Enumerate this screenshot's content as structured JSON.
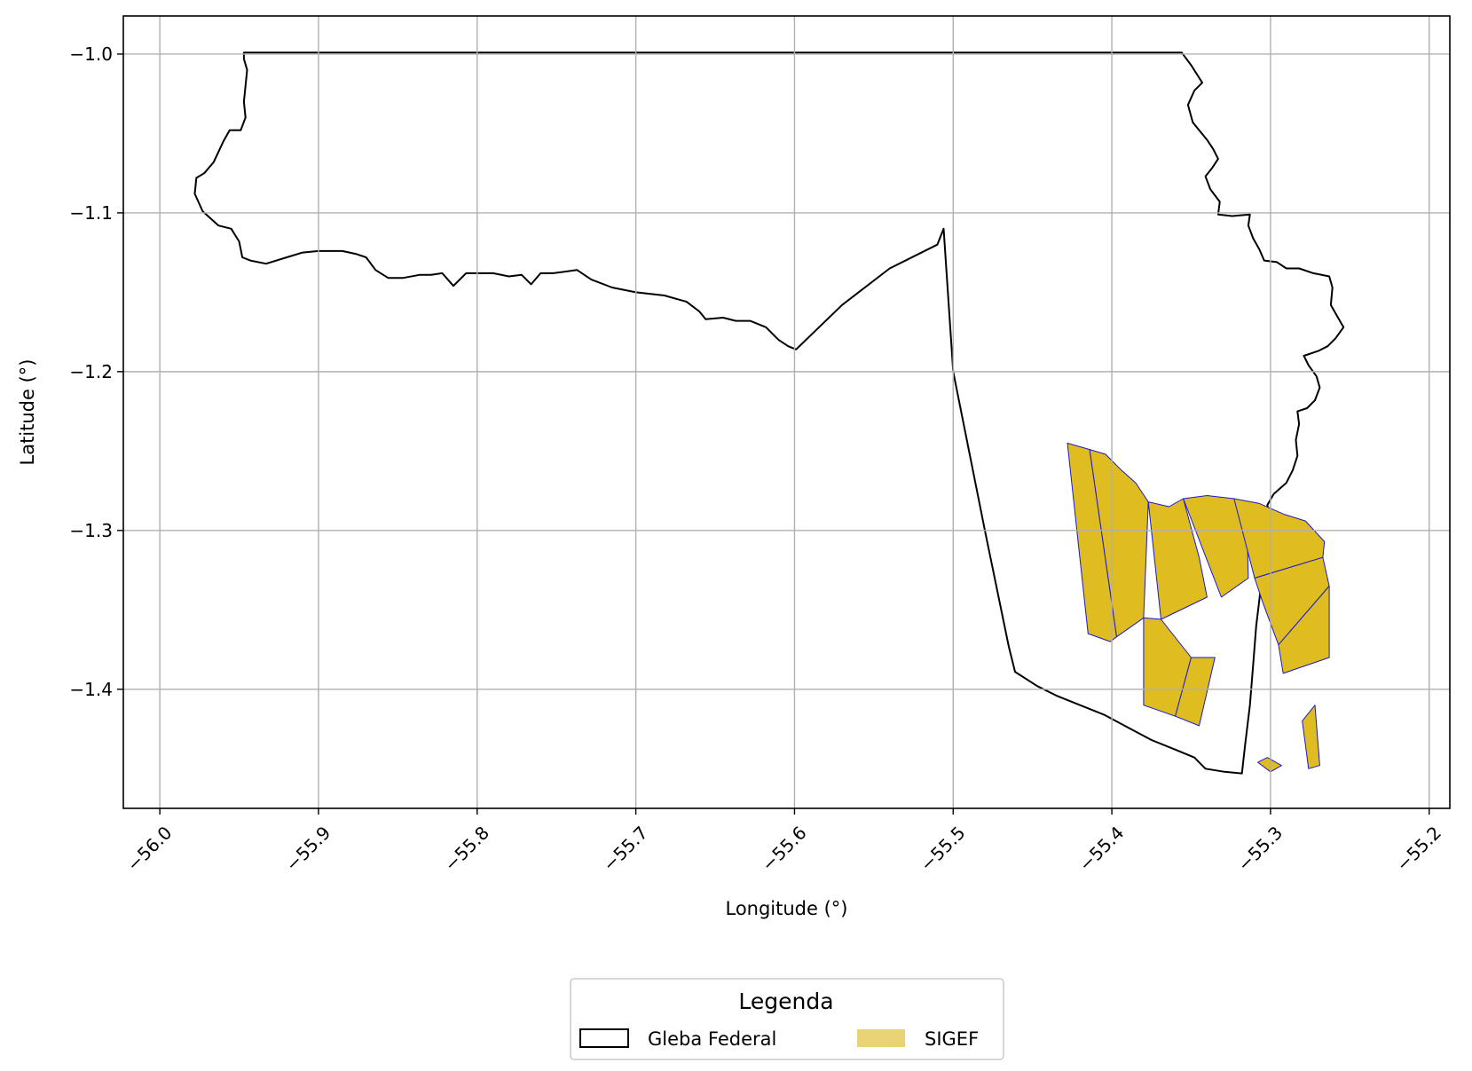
{
  "chart_data": {
    "type": "map",
    "xlabel": "Longitude (°)",
    "ylabel": "Latitude (°)",
    "xlim": [
      -56.023,
      -55.187
    ],
    "ylim": [
      -1.475,
      -0.976
    ],
    "xticks": [
      -56.0,
      -55.9,
      -55.8,
      -55.7,
      -55.6,
      -55.5,
      -55.4,
      -55.3,
      -55.2
    ],
    "xtick_labels": [
      "−56.0",
      "−55.9",
      "−55.8",
      "−55.7",
      "−55.6",
      "−55.5",
      "−55.4",
      "−55.3",
      "−55.2"
    ],
    "yticks": [
      -1.0,
      -1.1,
      -1.2,
      -1.3,
      -1.4
    ],
    "ytick_labels": [
      "−1.0",
      "−1.1",
      "−1.2",
      "−1.3",
      "−1.4"
    ],
    "grid": true,
    "legend": {
      "title": "Legenda",
      "position": "bottom-center",
      "entries": [
        {
          "label": "Gleba Federal",
          "style": "outline",
          "edge": "#000000",
          "fill": "#ffffff"
        },
        {
          "label": "SIGEF",
          "style": "fill",
          "fill": "#e8d474"
        }
      ]
    },
    "layers": [
      {
        "name": "Gleba Federal",
        "fill": "#ffffff",
        "edge": "#000000",
        "coords": [
          [
            -55.947,
            -0.999
          ],
          [
            -55.92,
            -0.999
          ],
          [
            -55.81,
            -0.999
          ],
          [
            -55.7,
            -0.999
          ],
          [
            -55.6,
            -0.999
          ],
          [
            -55.5,
            -0.999
          ],
          [
            -55.45,
            -0.999
          ],
          [
            -55.356,
            -0.999
          ],
          [
            -55.35,
            -1.007
          ],
          [
            -55.343,
            -1.018
          ],
          [
            -55.348,
            -1.023
          ],
          [
            -55.352,
            -1.032
          ],
          [
            -55.349,
            -1.043
          ],
          [
            -55.345,
            -1.048
          ],
          [
            -55.34,
            -1.054
          ],
          [
            -55.336,
            -1.06
          ],
          [
            -55.333,
            -1.066
          ],
          [
            -55.337,
            -1.072
          ],
          [
            -55.341,
            -1.077
          ],
          [
            -55.338,
            -1.085
          ],
          [
            -55.332,
            -1.093
          ],
          [
            -55.333,
            -1.101
          ],
          [
            -55.324,
            -1.102
          ],
          [
            -55.313,
            -1.101
          ],
          [
            -55.314,
            -1.108
          ],
          [
            -55.311,
            -1.116
          ],
          [
            -55.307,
            -1.123
          ],
          [
            -55.304,
            -1.13
          ],
          [
            -55.296,
            -1.131
          ],
          [
            -55.29,
            -1.135
          ],
          [
            -55.282,
            -1.135
          ],
          [
            -55.273,
            -1.138
          ],
          [
            -55.263,
            -1.14
          ],
          [
            -55.261,
            -1.147
          ],
          [
            -55.262,
            -1.158
          ],
          [
            -55.258,
            -1.165
          ],
          [
            -55.254,
            -1.172
          ],
          [
            -55.259,
            -1.179
          ],
          [
            -55.264,
            -1.184
          ],
          [
            -55.27,
            -1.187
          ],
          [
            -55.279,
            -1.19
          ],
          [
            -55.276,
            -1.196
          ],
          [
            -55.271,
            -1.203
          ],
          [
            -55.269,
            -1.21
          ],
          [
            -55.272,
            -1.218
          ],
          [
            -55.277,
            -1.223
          ],
          [
            -55.283,
            -1.225
          ],
          [
            -55.282,
            -1.233
          ],
          [
            -55.284,
            -1.243
          ],
          [
            -55.283,
            -1.253
          ],
          [
            -55.286,
            -1.262
          ],
          [
            -55.29,
            -1.27
          ],
          [
            -55.298,
            -1.277
          ],
          [
            -55.302,
            -1.284
          ],
          [
            -55.3,
            -1.292
          ],
          [
            -55.302,
            -1.298
          ],
          [
            -55.305,
            -1.305
          ],
          [
            -55.303,
            -1.313
          ],
          [
            -55.305,
            -1.319
          ],
          [
            -55.306,
            -1.335
          ],
          [
            -55.309,
            -1.36
          ],
          [
            -55.311,
            -1.385
          ],
          [
            -55.313,
            -1.41
          ],
          [
            -55.316,
            -1.435
          ],
          [
            -55.318,
            -1.453
          ],
          [
            -55.329,
            -1.452
          ],
          [
            -55.341,
            -1.45
          ],
          [
            -55.348,
            -1.443
          ],
          [
            -55.36,
            -1.438
          ],
          [
            -55.375,
            -1.432
          ],
          [
            -55.39,
            -1.424
          ],
          [
            -55.405,
            -1.416
          ],
          [
            -55.42,
            -1.41
          ],
          [
            -55.435,
            -1.404
          ],
          [
            -55.447,
            -1.398
          ],
          [
            -55.461,
            -1.389
          ],
          [
            -55.465,
            -1.373
          ],
          [
            -55.48,
            -1.3
          ],
          [
            -55.5,
            -1.2
          ],
          [
            -55.506,
            -1.11
          ],
          [
            -55.51,
            -1.12
          ],
          [
            -55.54,
            -1.135
          ],
          [
            -55.57,
            -1.158
          ],
          [
            -55.599,
            -1.186
          ],
          [
            -55.604,
            -1.184
          ],
          [
            -55.61,
            -1.18
          ],
          [
            -55.618,
            -1.172
          ],
          [
            -55.628,
            -1.168
          ],
          [
            -55.637,
            -1.168
          ],
          [
            -55.645,
            -1.166
          ],
          [
            -55.656,
            -1.167
          ],
          [
            -55.66,
            -1.162
          ],
          [
            -55.668,
            -1.156
          ],
          [
            -55.682,
            -1.152
          ],
          [
            -55.7,
            -1.15
          ],
          [
            -55.715,
            -1.147
          ],
          [
            -55.728,
            -1.142
          ],
          [
            -55.737,
            -1.136
          ],
          [
            -55.752,
            -1.138
          ],
          [
            -55.76,
            -1.138
          ],
          [
            -55.766,
            -1.145
          ],
          [
            -55.772,
            -1.139
          ],
          [
            -55.78,
            -1.14
          ],
          [
            -55.79,
            -1.138
          ],
          [
            -55.798,
            -1.138
          ],
          [
            -55.807,
            -1.138
          ],
          [
            -55.815,
            -1.146
          ],
          [
            -55.822,
            -1.138
          ],
          [
            -55.829,
            -1.139
          ],
          [
            -55.836,
            -1.139
          ],
          [
            -55.847,
            -1.141
          ],
          [
            -55.856,
            -1.141
          ],
          [
            -55.864,
            -1.136
          ],
          [
            -55.87,
            -1.128
          ],
          [
            -55.876,
            -1.126
          ],
          [
            -55.885,
            -1.124
          ],
          [
            -55.9,
            -1.124
          ],
          [
            -55.91,
            -1.125
          ],
          [
            -55.92,
            -1.128
          ],
          [
            -55.933,
            -1.132
          ],
          [
            -55.943,
            -1.13
          ],
          [
            -55.948,
            -1.128
          ],
          [
            -55.95,
            -1.118
          ],
          [
            -55.955,
            -1.11
          ],
          [
            -55.963,
            -1.108
          ],
          [
            -55.973,
            -1.099
          ],
          [
            -55.978,
            -1.088
          ],
          [
            -55.977,
            -1.078
          ],
          [
            -55.972,
            -1.075
          ],
          [
            -55.966,
            -1.068
          ],
          [
            -55.96,
            -1.055
          ],
          [
            -55.956,
            -1.048
          ],
          [
            -55.949,
            -1.048
          ],
          [
            -55.946,
            -1.04
          ],
          [
            -55.947,
            -1.03
          ],
          [
            -55.945,
            -1.01
          ],
          [
            -55.947,
            -1.003
          ],
          [
            -55.947,
            -0.999
          ]
        ]
      },
      {
        "name": "SIGEF",
        "fill": "#dfbc20",
        "edge": "#1a1acc",
        "parcels": [
          [
            [
              -55.428,
              -1.245
            ],
            [
              -55.414,
              -1.249
            ],
            [
              -55.397,
              -1.367
            ],
            [
              -55.401,
              -1.37
            ],
            [
              -55.415,
              -1.365
            ],
            [
              -55.428,
              -1.245
            ]
          ],
          [
            [
              -55.414,
              -1.249
            ],
            [
              -55.404,
              -1.252
            ],
            [
              -55.394,
              -1.262
            ],
            [
              -55.385,
              -1.27
            ],
            [
              -55.377,
              -1.282
            ],
            [
              -55.38,
              -1.355
            ],
            [
              -55.397,
              -1.367
            ],
            [
              -55.414,
              -1.249
            ]
          ],
          [
            [
              -55.377,
              -1.282
            ],
            [
              -55.364,
              -1.285
            ],
            [
              -55.355,
              -1.28
            ],
            [
              -55.345,
              -1.317
            ],
            [
              -55.34,
              -1.342
            ],
            [
              -55.369,
              -1.356
            ],
            [
              -55.377,
              -1.282
            ]
          ],
          [
            [
              -55.355,
              -1.28
            ],
            [
              -55.34,
              -1.278
            ],
            [
              -55.323,
              -1.28
            ],
            [
              -55.315,
              -1.29
            ],
            [
              -55.314,
              -1.33
            ],
            [
              -55.331,
              -1.342
            ],
            [
              -55.355,
              -1.28
            ]
          ],
          [
            [
              -55.323,
              -1.28
            ],
            [
              -55.307,
              -1.283
            ],
            [
              -55.291,
              -1.29
            ],
            [
              -55.278,
              -1.294
            ],
            [
              -55.266,
              -1.307
            ],
            [
              -55.267,
              -1.317
            ],
            [
              -55.31,
              -1.33
            ],
            [
              -55.323,
              -1.28
            ]
          ],
          [
            [
              -55.31,
              -1.33
            ],
            [
              -55.267,
              -1.317
            ],
            [
              -55.263,
              -1.335
            ],
            [
              -55.295,
              -1.372
            ],
            [
              -55.305,
              -1.345
            ],
            [
              -55.31,
              -1.33
            ]
          ],
          [
            [
              -55.369,
              -1.356
            ],
            [
              -55.38,
              -1.355
            ],
            [
              -55.38,
              -1.41
            ],
            [
              -55.36,
              -1.417
            ],
            [
              -55.35,
              -1.38
            ],
            [
              -55.369,
              -1.356
            ]
          ],
          [
            [
              -55.35,
              -1.38
            ],
            [
              -55.36,
              -1.417
            ],
            [
              -55.345,
              -1.423
            ],
            [
              -55.335,
              -1.38
            ],
            [
              -55.35,
              -1.38
            ]
          ],
          [
            [
              -55.295,
              -1.372
            ],
            [
              -55.263,
              -1.335
            ],
            [
              -55.263,
              -1.38
            ],
            [
              -55.292,
              -1.39
            ],
            [
              -55.295,
              -1.372
            ]
          ],
          [
            [
              -55.28,
              -1.42
            ],
            [
              -55.276,
              -1.45
            ],
            [
              -55.269,
              -1.448
            ],
            [
              -55.272,
              -1.41
            ],
            [
              -55.28,
              -1.42
            ]
          ],
          [
            [
              -55.302,
              -1.443
            ],
            [
              -55.293,
              -1.448
            ],
            [
              -55.3,
              -1.452
            ],
            [
              -55.308,
              -1.446
            ],
            [
              -55.302,
              -1.443
            ]
          ]
        ]
      }
    ]
  }
}
